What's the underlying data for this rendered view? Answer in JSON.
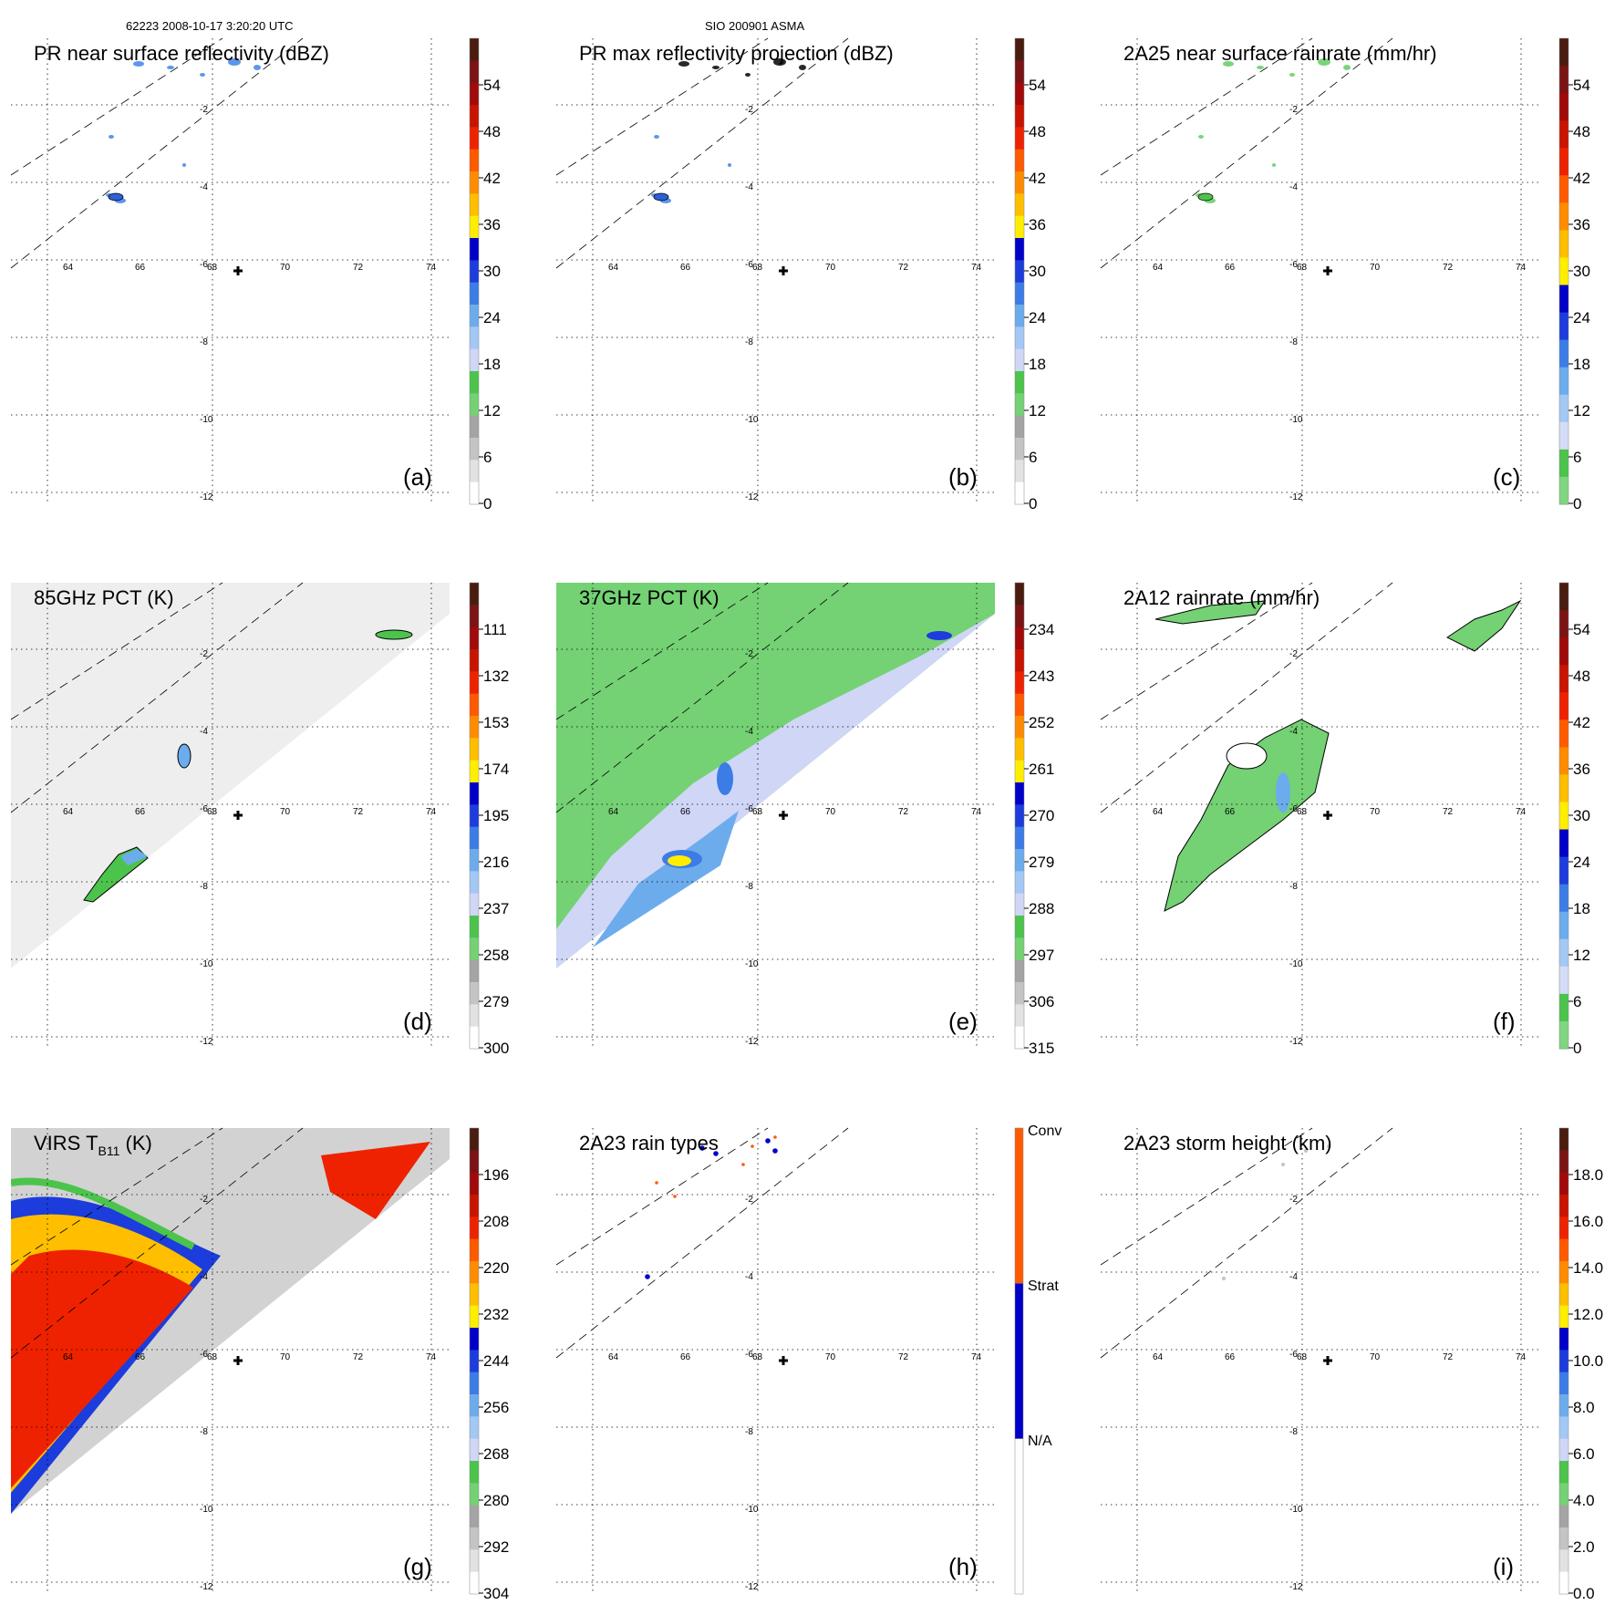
{
  "header": {
    "orbit_time": "62223 2008-10-17 3:20:20 UTC",
    "storm_id": "SIO 200901 ASMA"
  },
  "grid": {
    "x_ticks": [
      "64",
      "66",
      "68",
      "70",
      "72",
      "74"
    ],
    "y_ticks": [
      "-2",
      "-4",
      "-6",
      "-8",
      "-10",
      "-12"
    ],
    "xlim": [
      62.7,
      75
    ],
    "ylim": [
      -12.6,
      -0.5
    ],
    "center_marker": [
      68.8,
      -6.2
    ]
  },
  "chart_data": [
    {
      "id": "a",
      "type": "heatmap",
      "title": "PR near surface reflectivity (dBZ)",
      "panel_label": "(a)",
      "colorbar": {
        "ticks": [
          "54",
          "48",
          "42",
          "36",
          "30",
          "24",
          "18",
          "12",
          "6",
          "0"
        ],
        "range": [
          0,
          60
        ],
        "colors": [
          "#ffffff",
          "#e2e2e2",
          "#c4c4c4",
          "#a4a4a4",
          "#74d174",
          "#4cc44c",
          "#cfd6f6",
          "#a4c8f4",
          "#6cacec",
          "#3c7ce6",
          "#1c3cdc",
          "#0000c8",
          "#ffee00",
          "#ffbf00",
          "#ff8c00",
          "#ff5a00",
          "#ee2200",
          "#c81400",
          "#a00a0a",
          "#7a1414",
          "#4a1c10"
        ]
      }
    },
    {
      "id": "b",
      "type": "heatmap",
      "title": "PR max reflectivity projection (dBZ)",
      "panel_label": "(b)",
      "colorbar": {
        "ticks": [
          "54",
          "48",
          "42",
          "36",
          "30",
          "24",
          "18",
          "12",
          "6",
          "0"
        ],
        "range": [
          0,
          60
        ],
        "colors": [
          "#ffffff",
          "#e2e2e2",
          "#c4c4c4",
          "#a4a4a4",
          "#74d174",
          "#4cc44c",
          "#cfd6f6",
          "#a4c8f4",
          "#6cacec",
          "#3c7ce6",
          "#1c3cdc",
          "#0000c8",
          "#ffee00",
          "#ffbf00",
          "#ff8c00",
          "#ff5a00",
          "#ee2200",
          "#c81400",
          "#a00a0a",
          "#7a1414",
          "#4a1c10"
        ]
      }
    },
    {
      "id": "c",
      "type": "heatmap",
      "title": "2A25 near surface rainrate (mm/hr)",
      "panel_label": "(c)",
      "colorbar": {
        "ticks": [
          "54",
          "48",
          "42",
          "36",
          "30",
          "24",
          "18",
          "12",
          "6",
          "0"
        ],
        "range": [
          0,
          60
        ],
        "colors": [
          "#7fd67f",
          "#4cc44c",
          "#d4dcf7",
          "#a4c8f4",
          "#6cacec",
          "#3c7ce6",
          "#1c3cdc",
          "#0000c8",
          "#ffee00",
          "#ffbf00",
          "#ff8c00",
          "#ff5a00",
          "#ee2200",
          "#c81400",
          "#a00a0a",
          "#7a1414",
          "#4a1c10"
        ]
      }
    },
    {
      "id": "d",
      "type": "heatmap",
      "title": "85GHz PCT (K)",
      "panel_label": "(d)",
      "colorbar": {
        "ticks": [
          "111",
          "132",
          "153",
          "174",
          "195",
          "216",
          "237",
          "258",
          "279",
          "300"
        ],
        "range": [
          300,
          90
        ],
        "colors": [
          "#ffffff",
          "#e2e2e2",
          "#c4c4c4",
          "#a4a4a4",
          "#74d174",
          "#4cc44c",
          "#cfd6f6",
          "#a4c8f4",
          "#6cacec",
          "#3c7ce6",
          "#1c3cdc",
          "#0000c8",
          "#ffee00",
          "#ffbf00",
          "#ff8c00",
          "#ff5a00",
          "#ee2200",
          "#c81400",
          "#a00a0a",
          "#7a1414",
          "#4a1c10"
        ]
      }
    },
    {
      "id": "e",
      "type": "heatmap",
      "title": "37GHz PCT (K)",
      "panel_label": "(e)",
      "colorbar": {
        "ticks": [
          "234",
          "243",
          "252",
          "261",
          "270",
          "279",
          "288",
          "297",
          "306",
          "315"
        ],
        "range": [
          315,
          225
        ],
        "colors": [
          "#ffffff",
          "#e2e2e2",
          "#c4c4c4",
          "#a4a4a4",
          "#74d174",
          "#4cc44c",
          "#cfd6f6",
          "#a4c8f4",
          "#6cacec",
          "#3c7ce6",
          "#1c3cdc",
          "#0000c8",
          "#ffee00",
          "#ffbf00",
          "#ff8c00",
          "#ff5a00",
          "#ee2200",
          "#c81400",
          "#a00a0a",
          "#7a1414",
          "#4a1c10"
        ]
      }
    },
    {
      "id": "f",
      "type": "heatmap",
      "title": "2A12 rainrate (mm/hr)",
      "panel_label": "(f)",
      "colorbar": {
        "ticks": [
          "54",
          "48",
          "42",
          "36",
          "30",
          "24",
          "18",
          "12",
          "6",
          "0"
        ],
        "range": [
          0,
          60
        ],
        "colors": [
          "#7fd67f",
          "#4cc44c",
          "#d4dcf7",
          "#a4c8f4",
          "#6cacec",
          "#3c7ce6",
          "#1c3cdc",
          "#0000c8",
          "#ffee00",
          "#ffbf00",
          "#ff8c00",
          "#ff5a00",
          "#ee2200",
          "#c81400",
          "#a00a0a",
          "#7a1414",
          "#4a1c10"
        ]
      }
    },
    {
      "id": "g",
      "type": "heatmap",
      "title": "VIRS T",
      "title_sub": "B11",
      "title_suffix": " (K)",
      "panel_label": "(g)",
      "colorbar": {
        "ticks": [
          "196",
          "208",
          "220",
          "232",
          "244",
          "256",
          "268",
          "280",
          "292",
          "304"
        ],
        "range": [
          304,
          184
        ],
        "colors": [
          "#ffffff",
          "#e2e2e2",
          "#c4c4c4",
          "#a4a4a4",
          "#74d174",
          "#4cc44c",
          "#cfd6f6",
          "#a4c8f4",
          "#6cacec",
          "#3c7ce6",
          "#1c3cdc",
          "#0000c8",
          "#ffee00",
          "#ffbf00",
          "#ff8c00",
          "#ff5a00",
          "#ee2200",
          "#c81400",
          "#a00a0a",
          "#7a1414",
          "#4a1c10"
        ]
      }
    },
    {
      "id": "h",
      "type": "heatmap",
      "title": "2A23 rain types",
      "panel_label": "(h)",
      "colorbar": {
        "categories": [
          "Conv",
          "Strat",
          "N/A"
        ],
        "colors": [
          "#ff5a00",
          "#0000c8",
          "#ffffff"
        ]
      }
    },
    {
      "id": "i",
      "type": "heatmap",
      "title": "2A23 storm height (km)",
      "panel_label": "(i)",
      "colorbar": {
        "ticks": [
          "18.0",
          "16.0",
          "14.0",
          "12.0",
          "10.0",
          "8.0",
          "6.0",
          "4.0",
          "2.0",
          "0.0"
        ],
        "range": [
          0,
          20
        ],
        "colors": [
          "#ffffff",
          "#e2e2e2",
          "#c4c4c4",
          "#a4a4a4",
          "#74d174",
          "#4cc44c",
          "#cfd6f6",
          "#a4c8f4",
          "#6cacec",
          "#3c7ce6",
          "#1c3cdc",
          "#0000c8",
          "#ffee00",
          "#ffbf00",
          "#ff8c00",
          "#ff5a00",
          "#ee2200",
          "#c81400",
          "#a00a0a",
          "#7a1414",
          "#4a1c10"
        ]
      }
    }
  ]
}
